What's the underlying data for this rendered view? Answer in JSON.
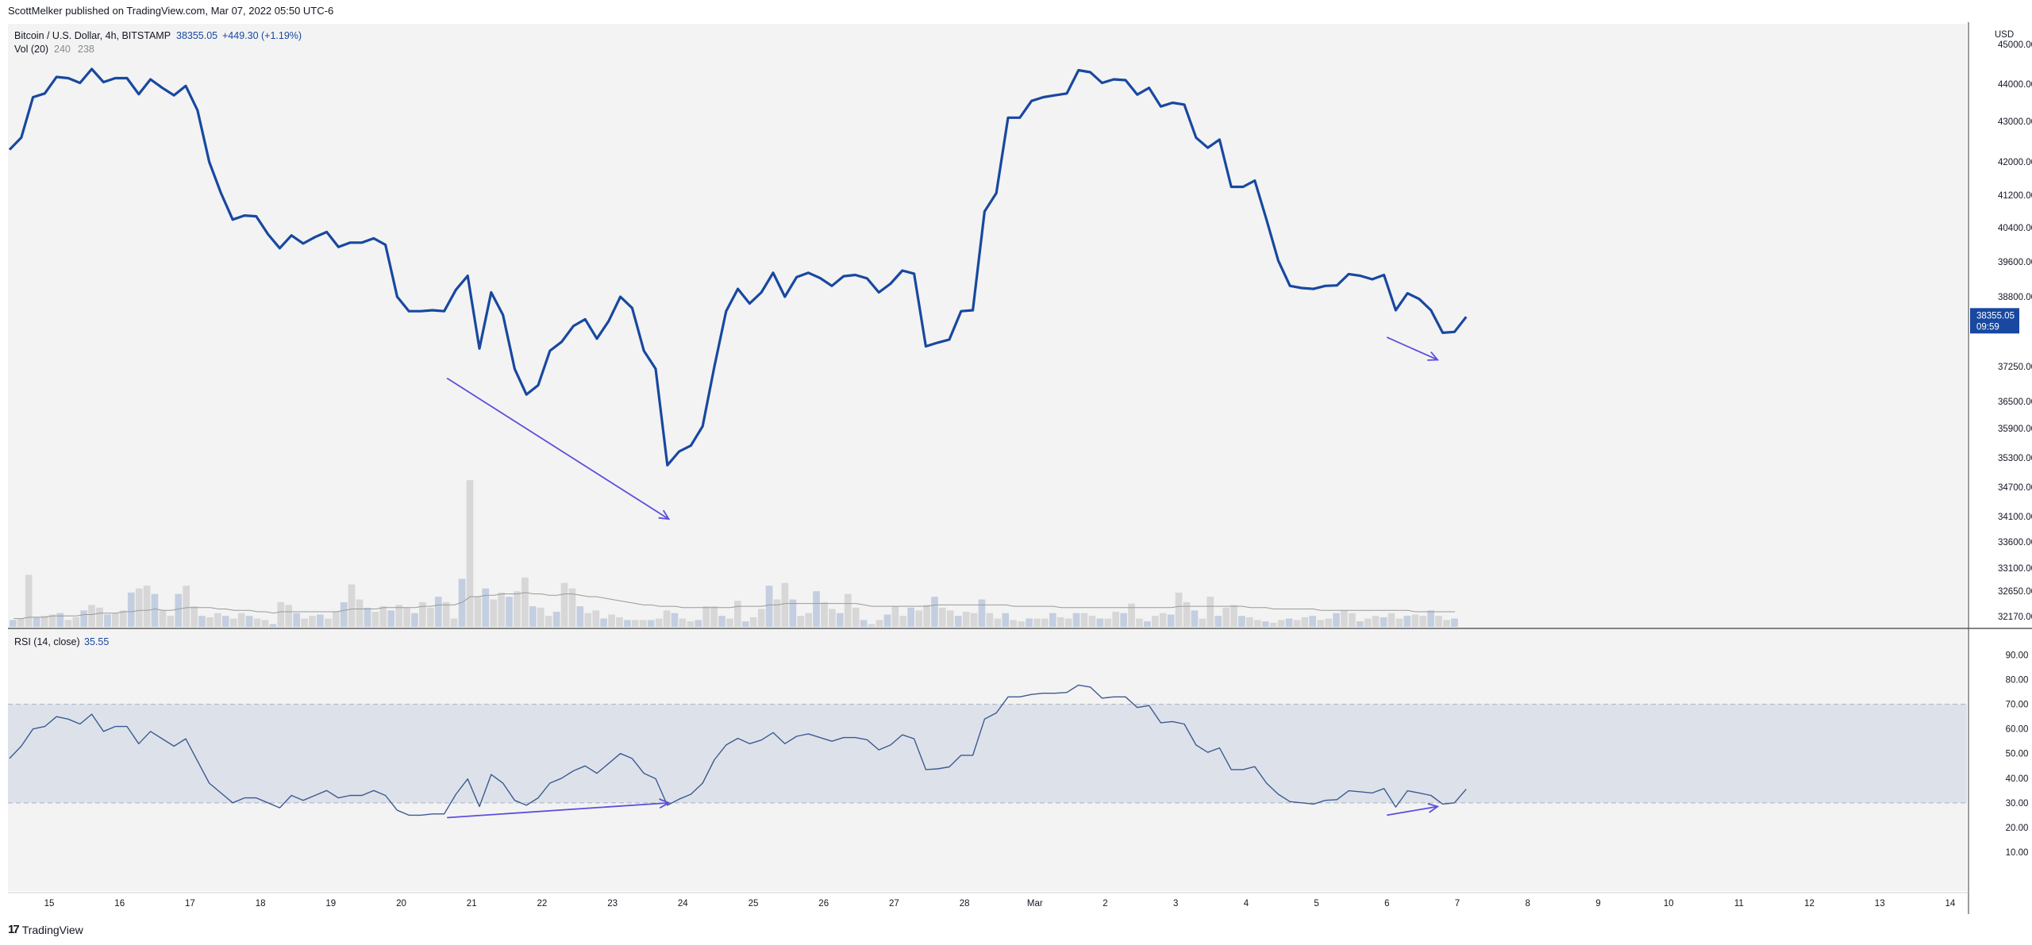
{
  "header": {
    "published": "ScottMelker published on TradingView.com, Mar 07, 2022 05:50 UTC-6"
  },
  "footer": {
    "logo_glyph": "17",
    "brand": "TradingView"
  },
  "colors": {
    "price_line": "#1848a0",
    "volume_bar": "#d7d7d7",
    "volume_bar_blue": "#c3cfe0",
    "volume_ma": "#9a9a9a",
    "rsi_line": "#3c5a92",
    "rsi_band": "#dde2ea",
    "arrow": "#5b4fdc",
    "pane_bg": "#f3f3f3",
    "last_price_bg": "#1848a0"
  },
  "legend": {
    "symbol": "Bitcoin / U.S. Dollar, 4h, BITSTAMP",
    "last": "38355.05",
    "change": "+449.30 (+1.19%)",
    "vol_label": "Vol (20)",
    "vol_val1": "240",
    "vol_val2": "238",
    "rsi_label": "RSI (14, close)",
    "rsi_val": "35.55"
  },
  "price_axis": {
    "currency": "USD",
    "ticks": [
      "45000.00",
      "44000.00",
      "43000.00",
      "42000.00",
      "41200.00",
      "40400.00",
      "39600.00",
      "38800.00",
      "37250.00",
      "36500.00",
      "35900.00",
      "35300.00",
      "34700.00",
      "34100.00",
      "33600.00",
      "33100.00",
      "32650.00",
      "32170.00"
    ],
    "last_price_label": "38355.05",
    "countdown": "09:59"
  },
  "rsi_axis": {
    "ticks": [
      "90.00",
      "80.00",
      "70.00",
      "60.00",
      "50.00",
      "40.00",
      "30.00",
      "20.00",
      "10.00"
    ],
    "band": [
      30,
      70
    ],
    "range": [
      0,
      95
    ]
  },
  "time_axis": {
    "labels": [
      "15",
      "16",
      "17",
      "18",
      "19",
      "20",
      "21",
      "22",
      "23",
      "24",
      "25",
      "26",
      "27",
      "28",
      "Mar",
      "2",
      "3",
      "4",
      "5",
      "6",
      "7",
      "8",
      "9",
      "10",
      "11",
      "12",
      "13",
      "14"
    ]
  },
  "chart_data": {
    "type": "line",
    "x_unit": "day",
    "x_start": "Feb 14, 2022 18:00",
    "bar_hours": 4,
    "price": {
      "name": "Bitcoin / U.S. Dollar, 4h, BITSTAMP",
      "values": [
        42300,
        42600,
        43650,
        43750,
        44180,
        44150,
        44030,
        44380,
        44050,
        44150,
        44150,
        43730,
        44120,
        43900,
        43700,
        43950,
        43300,
        42000,
        41250,
        40600,
        40700,
        40680,
        40250,
        39920,
        40220,
        40030,
        40180,
        40300,
        39950,
        40050,
        40050,
        40150,
        40000,
        38800,
        38480,
        38480,
        38500,
        38480,
        38960,
        39280,
        37650,
        38900,
        38400,
        37200,
        36650,
        36850,
        37600,
        37800,
        38150,
        38300,
        37870,
        38260,
        38800,
        38550,
        37600,
        37200,
        35150,
        35430,
        35550,
        35950,
        37250,
        38480,
        38980,
        38650,
        38900,
        39350,
        38800,
        39250,
        39350,
        39230,
        39050,
        39270,
        39300,
        39220,
        38900,
        39100,
        39400,
        39330,
        37700,
        37780,
        37850,
        38480,
        38500,
        40800,
        41250,
        43100,
        43100,
        43550,
        43650,
        43700,
        43750,
        44350,
        44300,
        44030,
        44120,
        44100,
        43720,
        43900,
        43400,
        43500,
        43450,
        42600,
        42350,
        42550,
        41400,
        41400,
        41550,
        40600,
        39630,
        39050,
        39000,
        38980,
        39050,
        39060,
        39320,
        39280,
        39200,
        39300,
        38500,
        38880,
        38750,
        38500,
        38000,
        38020,
        38355
      ],
      "ylim": [
        32000,
        45300
      ]
    },
    "volume": {
      "name": "Vol (20)",
      "values": [
        5,
        6,
        38,
        7,
        8,
        9,
        10,
        5,
        7,
        12,
        16,
        14,
        9,
        10,
        12,
        25,
        28,
        30,
        24,
        12,
        8,
        24,
        30,
        15,
        8,
        7,
        10,
        8,
        6,
        10,
        8,
        6,
        5,
        2,
        18,
        16,
        10,
        6,
        8,
        9,
        6,
        11,
        18,
        31,
        20,
        14,
        11,
        15,
        12,
        16,
        14,
        10,
        18,
        14,
        22,
        18,
        6,
        35,
        107,
        22,
        28,
        20,
        25,
        22,
        26,
        36,
        15,
        14,
        8,
        11,
        32,
        28,
        15,
        10,
        12,
        6,
        9,
        7,
        5,
        5,
        5,
        5,
        6,
        12,
        10,
        6,
        4,
        5,
        15,
        15,
        8,
        6,
        19,
        4,
        7,
        13,
        30,
        20,
        32,
        20,
        8,
        10,
        26,
        18,
        13,
        10,
        24,
        14,
        5,
        2,
        5,
        9,
        15,
        8,
        14,
        12,
        16,
        22,
        14,
        12,
        8,
        11,
        10,
        20,
        10,
        6,
        10,
        5,
        4,
        6,
        6,
        6,
        10,
        7,
        6,
        10,
        10,
        8,
        6,
        6,
        11,
        10,
        17,
        6,
        4,
        8,
        10,
        9,
        25,
        18,
        12,
        6,
        22,
        8,
        14,
        16,
        8,
        7,
        5,
        4,
        3,
        5,
        6,
        5,
        7,
        8,
        5,
        6,
        10,
        12,
        10,
        4,
        6,
        8,
        7,
        10,
        6,
        8,
        9,
        8,
        12,
        8,
        5,
        6,
        10,
        6,
        5,
        8,
        7,
        6,
        5,
        7,
        5,
        6,
        7,
        5,
        6,
        5,
        9,
        7,
        6,
        10,
        8,
        6
      ],
      "ma_values": [
        6,
        6,
        7,
        7,
        7,
        8,
        8,
        8,
        8,
        9,
        9,
        10,
        10,
        10,
        11,
        11,
        12,
        12,
        13,
        12,
        12,
        13,
        14,
        14,
        14,
        14,
        13,
        13,
        12,
        12,
        12,
        11,
        11,
        10,
        11,
        11,
        11,
        11,
        11,
        11,
        11,
        11,
        12,
        13,
        13,
        13,
        13,
        14,
        14,
        14,
        14,
        14,
        15,
        15,
        16,
        16,
        16,
        18,
        22,
        22,
        23,
        23,
        24,
        24,
        24,
        25,
        24,
        24,
        23,
        23,
        24,
        24,
        23,
        22,
        22,
        21,
        20,
        19,
        18,
        17,
        16,
        16,
        15,
        15,
        15,
        14,
        14,
        14,
        14,
        14,
        14,
        14,
        15,
        15,
        15,
        15,
        16,
        16,
        17,
        17,
        17,
        17,
        17,
        17,
        17,
        17,
        17,
        17,
        16,
        15,
        15,
        15,
        15,
        15,
        15,
        15,
        15,
        16,
        16,
        16,
        16,
        16,
        16,
        16,
        16,
        16,
        16,
        15,
        15,
        15,
        15,
        15,
        15,
        14,
        14,
        14,
        14,
        14,
        14,
        14,
        14,
        14,
        14,
        14,
        14,
        14,
        14,
        14,
        15,
        15,
        15,
        15,
        15,
        15,
        15,
        15,
        15,
        14,
        14,
        14,
        13,
        13,
        13,
        13,
        13,
        13,
        12,
        12,
        12,
        12,
        12,
        12,
        12,
        12,
        12,
        12,
        12,
        12,
        11,
        11,
        11,
        11,
        11,
        11,
        11,
        11,
        11,
        11,
        11,
        11,
        11,
        11,
        11,
        11,
        11,
        11,
        11,
        11,
        11,
        11,
        11,
        11,
        11,
        11,
        11,
        11
      ],
      "ylim": [
        0,
        110
      ]
    },
    "rsi": {
      "name": "RSI (14, close)",
      "values": [
        48,
        53,
        60,
        61,
        65,
        64,
        62,
        66,
        59,
        61,
        61,
        54,
        59,
        56,
        53,
        56,
        47,
        38,
        34,
        30,
        32,
        32,
        30,
        28,
        33,
        31,
        33,
        35,
        32,
        33,
        33,
        35,
        33,
        27,
        25,
        25,
        25.5,
        25.5,
        33.5,
        39.7,
        28.5,
        41.5,
        38,
        31,
        29,
        32,
        38,
        40,
        43,
        45,
        42,
        46,
        50,
        48,
        42,
        39.8,
        29,
        31.5,
        33.5,
        38,
        47.5,
        53.5,
        56.2,
        54,
        55.5,
        58.5,
        54,
        57,
        58,
        56.5,
        55,
        56.5,
        56.5,
        55.6,
        51.5,
        53.5,
        57.6,
        56,
        43.5,
        43.8,
        44.6,
        49.3,
        49.3,
        64,
        66.5,
        73,
        73,
        74,
        74.5,
        74.5,
        74.8,
        77.8,
        77,
        72.5,
        73,
        73,
        68.7,
        69.5,
        62.5,
        63,
        62,
        53.5,
        50.5,
        52.3,
        43.5,
        43.5,
        44.7,
        38,
        33.5,
        30.5,
        30,
        29.5,
        31,
        31.3,
        34.9,
        34.5,
        34,
        35.8,
        28.3,
        34.9,
        34,
        33,
        29.5,
        30,
        35.55
      ],
      "ylim": [
        0,
        95
      ]
    },
    "annotations": [
      {
        "pane": "price",
        "type": "arrow",
        "from": [
          20.65,
          37000
        ],
        "to": [
          23.8,
          34050
        ]
      },
      {
        "pane": "price",
        "type": "arrow",
        "from": [
          6.0,
          37900
        ],
        "to": [
          6.72,
          37400
        ]
      },
      {
        "pane": "rsi",
        "type": "arrow",
        "from": [
          20.65,
          24
        ],
        "to": [
          23.8,
          30
        ]
      },
      {
        "pane": "rsi",
        "type": "arrow",
        "from": [
          6.0,
          25
        ],
        "to": [
          6.72,
          28.5
        ]
      }
    ],
    "title": "Bitcoin / U.S. Dollar, 4h, BITSTAMP",
    "xlabel": "",
    "ylabel": "USD",
    "grid": false,
    "legend_position": "top-left"
  }
}
